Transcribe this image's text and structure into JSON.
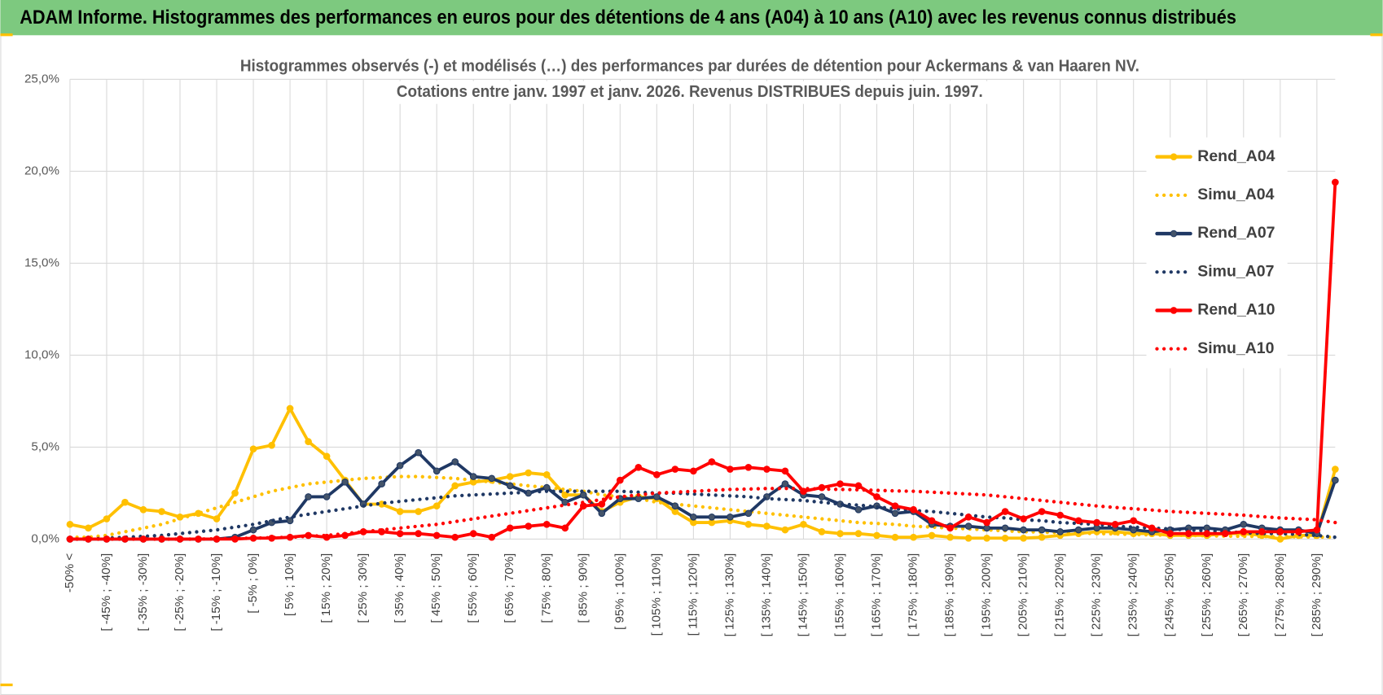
{
  "header": {
    "title": "ADAM Informe. Histogrammes des performances en euros pour des détentions de 4 ans (A04) à 10 ans (A10) avec les revenus connus distribués"
  },
  "chart_data": {
    "type": "line",
    "title": [
      "Histogrammes observés (-) et modélisés (…) des performances par durées de détention pour Ackermans & van Haaren NV.",
      "Cotations entre janv. 1997 et janv. 2026. Revenus DISTRIBUES depuis juin. 1997."
    ],
    "categories": [
      "-50% <",
      null,
      "[ -45% ; -40%]",
      null,
      "[ -35% ; -30%]",
      null,
      "[ -25% ; -20%]",
      null,
      "[ -15% ; -10%]",
      null,
      "[ -5% ; 0%]",
      null,
      "[ 5% ; 10%]",
      null,
      "[ 15% ; 20%]",
      null,
      "[ 25% ; 30%]",
      null,
      "[ 35% ; 40%]",
      null,
      "[ 45% ; 50%]",
      null,
      "[ 55% ; 60%]",
      null,
      "[ 65% ; 70%]",
      null,
      "[ 75% ; 80%]",
      null,
      "[ 85% ; 90%]",
      null,
      "[ 95% ; 100%]",
      null,
      "[ 105% ; 110%]",
      null,
      "[ 115% ; 120%]",
      null,
      "[ 125% ; 130%]",
      null,
      "[ 135% ; 140%]",
      null,
      "[ 145% ; 150%]",
      null,
      "[ 155% ; 160%]",
      null,
      "[ 165% ; 170%]",
      null,
      "[ 175% ; 180%]",
      null,
      "[ 185% ; 190%]",
      null,
      "[ 195% ; 200%]",
      null,
      "[ 205% ; 210%]",
      null,
      "[ 215% ; 220%]",
      null,
      "[ 225% ; 230%]",
      null,
      "[ 235% ; 240%]",
      null,
      "[ 245% ; 250%]",
      null,
      "[ 255% ; 260%]",
      null,
      "[ 265% ; 270%]",
      null,
      "[ 275% ; 280%]",
      null,
      "[ 285% ; 290%]",
      null
    ],
    "series": [
      {
        "name": "Rend_A04",
        "color": "#FFC000",
        "line_style": "solid",
        "markers": true,
        "values": [
          0.8,
          0.6,
          1.1,
          2.0,
          1.6,
          1.5,
          1.2,
          1.4,
          1.1,
          2.5,
          4.9,
          5.1,
          7.1,
          5.3,
          4.5,
          3.2,
          1.9,
          1.9,
          1.5,
          1.5,
          1.8,
          2.9,
          3.1,
          3.2,
          3.4,
          3.6,
          3.5,
          2.4,
          2.4,
          1.5,
          2.0,
          2.3,
          2.2,
          1.5,
          0.9,
          0.9,
          1.0,
          0.8,
          0.7,
          0.5,
          0.8,
          0.4,
          0.3,
          0.3,
          0.2,
          0.1,
          0.1,
          0.2,
          0.1,
          0.05,
          0.05,
          0.05,
          0.05,
          0.1,
          0.2,
          0.3,
          0.4,
          0.4,
          0.3,
          0.3,
          0.2,
          0.2,
          0.2,
          0.3,
          0.3,
          0.2,
          0.0,
          0.2,
          0.2,
          3.8
        ]
      },
      {
        "name": "Simu_A04",
        "color": "#FFC000",
        "line_style": "dotted",
        "markers": false,
        "values": [
          0.1,
          0.1,
          0.2,
          0.4,
          0.6,
          0.8,
          1.1,
          1.4,
          1.7,
          2.0,
          2.3,
          2.6,
          2.8,
          3.0,
          3.1,
          3.2,
          3.3,
          3.35,
          3.4,
          3.4,
          3.35,
          3.3,
          3.2,
          3.1,
          3.0,
          2.9,
          2.8,
          2.7,
          2.6,
          2.4,
          2.3,
          2.2,
          2.0,
          1.9,
          1.8,
          1.7,
          1.6,
          1.5,
          1.4,
          1.3,
          1.2,
          1.1,
          1.0,
          0.9,
          0.85,
          0.8,
          0.7,
          0.65,
          0.6,
          0.55,
          0.5,
          0.45,
          0.4,
          0.38,
          0.35,
          0.32,
          0.3,
          0.28,
          0.25,
          0.23,
          0.21,
          0.2,
          0.18,
          0.16,
          0.15,
          0.14,
          0.13,
          0.12,
          0.11,
          0.1
        ]
      },
      {
        "name": "Rend_A07",
        "color": "#1F3864",
        "marker_color": "#44546A",
        "line_style": "solid",
        "markers": true,
        "values": [
          0.0,
          0.0,
          0.0,
          0.0,
          0.0,
          0.0,
          0.0,
          0.0,
          0.0,
          0.1,
          0.5,
          0.9,
          1.0,
          2.3,
          2.3,
          3.1,
          1.9,
          3.0,
          4.0,
          4.7,
          3.7,
          4.2,
          3.4,
          3.3,
          2.9,
          2.5,
          2.8,
          2.0,
          2.4,
          1.4,
          2.2,
          2.2,
          2.3,
          1.8,
          1.2,
          1.2,
          1.2,
          1.4,
          2.3,
          3.0,
          2.4,
          2.3,
          1.9,
          1.6,
          1.8,
          1.4,
          1.5,
          0.8,
          0.7,
          0.7,
          0.6,
          0.6,
          0.5,
          0.5,
          0.4,
          0.5,
          0.6,
          0.6,
          0.5,
          0.4,
          0.5,
          0.6,
          0.6,
          0.5,
          0.8,
          0.6,
          0.5,
          0.5,
          0.3,
          3.2
        ]
      },
      {
        "name": "Simu_A07",
        "color": "#1F3864",
        "line_style": "dotted",
        "markers": false,
        "values": [
          0.0,
          0.0,
          0.05,
          0.1,
          0.15,
          0.2,
          0.3,
          0.4,
          0.5,
          0.65,
          0.8,
          1.0,
          1.2,
          1.35,
          1.5,
          1.65,
          1.8,
          1.95,
          2.05,
          2.15,
          2.25,
          2.35,
          2.4,
          2.45,
          2.5,
          2.55,
          2.6,
          2.6,
          2.6,
          2.6,
          2.6,
          2.55,
          2.5,
          2.5,
          2.45,
          2.4,
          2.35,
          2.3,
          2.2,
          2.15,
          2.1,
          2.0,
          1.9,
          1.85,
          1.75,
          1.65,
          1.55,
          1.5,
          1.4,
          1.3,
          1.2,
          1.15,
          1.05,
          1.0,
          0.9,
          0.85,
          0.8,
          0.7,
          0.65,
          0.6,
          0.55,
          0.5,
          0.45,
          0.4,
          0.35,
          0.3,
          0.3,
          0.25,
          0.2,
          0.1
        ]
      },
      {
        "name": "Rend_A10",
        "color": "#FF0000",
        "line_style": "solid",
        "markers": true,
        "values": [
          0.0,
          0.0,
          0.0,
          0.0,
          0.0,
          0.0,
          0.0,
          0.0,
          0.0,
          0.0,
          0.05,
          0.05,
          0.1,
          0.2,
          0.1,
          0.2,
          0.4,
          0.4,
          0.3,
          0.3,
          0.2,
          0.1,
          0.3,
          0.1,
          0.6,
          0.7,
          0.8,
          0.6,
          1.8,
          1.9,
          3.2,
          3.9,
          3.5,
          3.8,
          3.7,
          4.2,
          3.8,
          3.9,
          3.8,
          3.7,
          2.6,
          2.8,
          3.0,
          2.9,
          2.3,
          1.8,
          1.6,
          1.0,
          0.6,
          1.2,
          0.9,
          1.5,
          1.1,
          1.5,
          1.3,
          1.0,
          0.9,
          0.8,
          1.0,
          0.6,
          0.3,
          0.3,
          0.3,
          0.3,
          0.4,
          0.4,
          0.4,
          0.4,
          0.5,
          19.4
        ]
      },
      {
        "name": "Simu_A10",
        "color": "#FF0000",
        "line_style": "dotted",
        "markers": false,
        "values": [
          0,
          0,
          0,
          0,
          0,
          0,
          0,
          0,
          0.02,
          0.03,
          0.05,
          0.08,
          0.1,
          0.15,
          0.2,
          0.3,
          0.4,
          0.5,
          0.6,
          0.7,
          0.8,
          0.95,
          1.1,
          1.25,
          1.4,
          1.55,
          1.7,
          1.85,
          2.0,
          2.15,
          2.3,
          2.4,
          2.5,
          2.55,
          2.6,
          2.65,
          2.7,
          2.72,
          2.75,
          2.75,
          2.75,
          2.72,
          2.7,
          2.68,
          2.65,
          2.62,
          2.6,
          2.55,
          2.5,
          2.45,
          2.4,
          2.3,
          2.2,
          2.1,
          2.0,
          1.9,
          1.8,
          1.72,
          1.65,
          1.58,
          1.5,
          1.45,
          1.4,
          1.35,
          1.3,
          1.22,
          1.15,
          1.1,
          1.05,
          0.9
        ]
      }
    ],
    "ylim": [
      0,
      25
    ],
    "yticks": [
      {
        "value": 0,
        "label": "0,0%"
      },
      {
        "value": 5,
        "label": "5,0%"
      },
      {
        "value": 10,
        "label": "10,0%"
      },
      {
        "value": 15,
        "label": "15,0%"
      },
      {
        "value": 20,
        "label": "20,0%"
      },
      {
        "value": 25,
        "label": "25,0%"
      }
    ],
    "grid": true,
    "legend": "right"
  }
}
